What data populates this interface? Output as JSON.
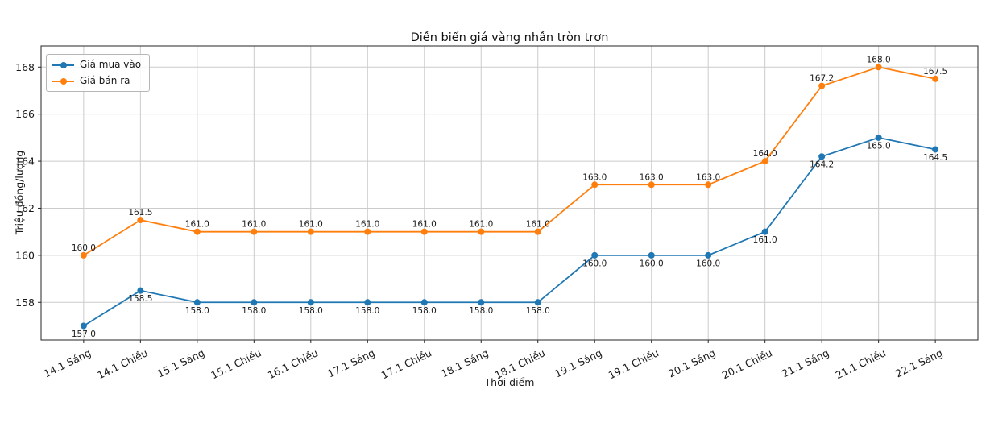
{
  "chart_data": {
    "type": "line",
    "title": "Diễn biến giá vàng nhẫn tròn trơn",
    "xlabel": "Thời điểm",
    "ylabel": "Triệu đồng/lượng",
    "categories": [
      "14.1 Sáng",
      "14.1 Chiều",
      "15.1 Sáng",
      "15.1 Chiều",
      "16.1 Chiều",
      "17.1 Sáng",
      "17.1 Chiều",
      "18.1 Sáng",
      "18.1 Chiều",
      "19.1 Sáng",
      "19.1 Chiều",
      "20.1 Sáng",
      "20.1 Chiều",
      "21.1 Sáng",
      "21.1 Chiều",
      "22.1 Sáng"
    ],
    "series": [
      {
        "name": "Giá mua vào",
        "color": "#1f77b4",
        "values": [
          157.0,
          158.5,
          158.0,
          158.0,
          158.0,
          158.0,
          158.0,
          158.0,
          158.0,
          160.0,
          160.0,
          160.0,
          161.0,
          164.2,
          165.0,
          164.5
        ],
        "data_label_position": "below"
      },
      {
        "name": "Giá bán ra",
        "color": "#ff7f0e",
        "values": [
          160.0,
          161.5,
          161.0,
          161.0,
          161.0,
          161.0,
          161.0,
          161.0,
          161.0,
          163.0,
          163.0,
          163.0,
          164.0,
          167.2,
          168.0,
          167.5
        ],
        "data_label_position": "above"
      }
    ],
    "yticks": [
      158,
      160,
      162,
      164,
      166,
      168
    ],
    "ylim": [
      156.4,
      168.9
    ],
    "grid": true,
    "grid_color": "#cbcbcb",
    "legend_position": "upper left",
    "data_labels": true
  }
}
